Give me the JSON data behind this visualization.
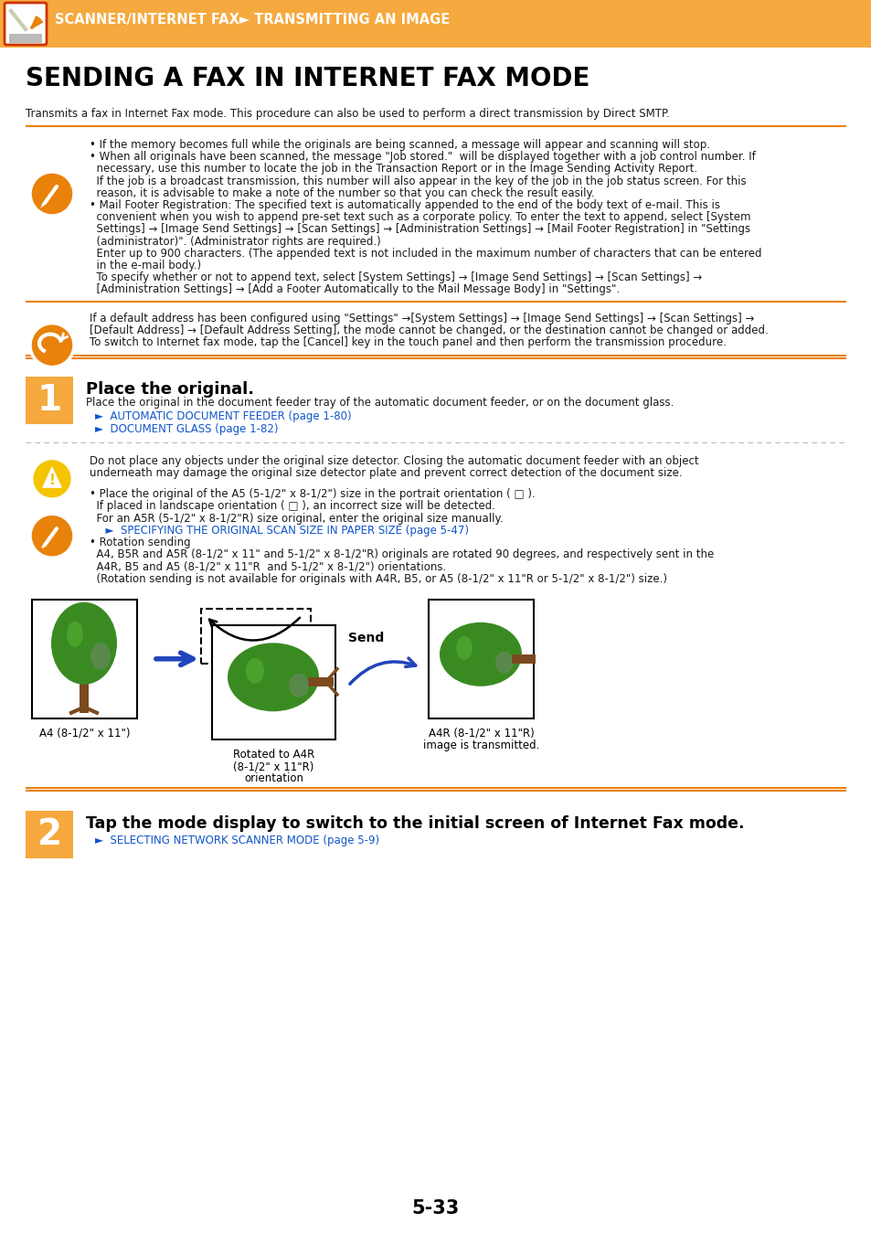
{
  "header_bg": "#F5A93E",
  "header_text": "SCANNER/INTERNET FAX► TRANSMITTING AN IMAGE",
  "page_bg": "#FFFFFF",
  "title": "SENDING A FAX IN INTERNET FAX MODE",
  "subtitle": "Transmits a fax in Internet Fax mode. This procedure can also be used to perform a direct transmission by Direct SMTP.",
  "orange_color": "#E8820A",
  "step_box_color": "#F5A93E",
  "link_color": "#1155CC",
  "note_icon_color": "#E8820A",
  "caution_icon_color": "#F5C400",
  "page_number": "5-33",
  "note1_line1": "• If the memory becomes full while the originals are being scanned, a message will appear and scanning will stop.",
  "note1_line2a": "• When all originals have been scanned, the message \"Job stored.\"  will be displayed together with a job control number. If",
  "note1_line2b": "  necessary, use this number to locate the job in the Transaction Report or in the Image Sending Activity Report.",
  "note1_line2c": "  If the job is a broadcast transmission, this number will also appear in the key of the job in the job status screen. For this",
  "note1_line2d": "  reason, it is advisable to make a note of the number so that you can check the result easily.",
  "note1_line3a": "• Mail Footer Registration: The specified text is automatically appended to the end of the body text of e-mail. This is",
  "note1_line3b": "  convenient when you wish to append pre-set text such as a corporate policy. To enter the text to append, select [System",
  "note1_line3c": "  Settings] → [Image Send Settings] → [Scan Settings] → [Administration Settings] → [Mail Footer Registration] in \"Settings",
  "note1_line3d": "  (administrator)\". (Administrator rights are required.)",
  "note1_line3e": "  Enter up to 900 characters. (The appended text is not included in the maximum number of characters that can be entered",
  "note1_line3f": "  in the e-mail body.)",
  "note1_line3g": "  To specify whether or not to append text, select [System Settings] → [Image Send Settings] → [Scan Settings] →",
  "note1_line3h": "  [Administration Settings] → [Add a Footer Automatically to the Mail Message Body] in \"Settings\".",
  "warn_line1": "If a default address has been configured using \"Settings\" →[System Settings] → [Image Send Settings] → [Scan Settings] →",
  "warn_line2": "[Default Address] → [Default Address Setting], the mode cannot be changed, or the destination cannot be changed or added.",
  "warn_line3": "To switch to Internet fax mode, tap the [Cancel] key in the touch panel and then perform the transmission procedure.",
  "step1_title": "Place the original.",
  "step1_body": "Place the original in the document feeder tray of the automatic document feeder, or on the document glass.",
  "step1_link1": "►  AUTOMATIC DOCUMENT FEEDER (page 1-80)",
  "step1_link2": "►  DOCUMENT GLASS (page 1-82)",
  "caution_line1": "Do not place any objects under the original size detector. Closing the automatic document feeder with an object",
  "caution_line2": "underneath may damage the original size detector plate and prevent correct detection of the document size.",
  "note2_line1a": "• Place the original of the A5 (5-1/2\" x 8-1/2\") size in the portrait orientation ( □ ).",
  "note2_line1b": "  If placed in landscape orientation ( □ ), an incorrect size will be detected.",
  "note2_line1c": "  For an A5R (5-1/2\" x 8-1/2\"R) size original, enter the original size manually.",
  "note2_link1": "  ►  SPECIFYING THE ORIGINAL SCAN SIZE IN PAPER SIZE (page 5-47)",
  "note2_line2a": "• Rotation sending",
  "note2_line2b": "  A4, B5R and A5R (8-1/2\" x 11\" and 5-1/2\" x 8-1/2\"R) originals are rotated 90 degrees, and respectively sent in the",
  "note2_line2c": "  A4R, B5 and A5 (8-1/2\" x 11\"R  and 5-1/2\" x 8-1/2\") orientations.",
  "note2_line2d": "  (Rotation sending is not available for originals with A4R, B5, or A5 (8-1/2\" x 11\"R or 5-1/2\" x 8-1/2\") size.)",
  "diag_a4_label": "A4 (8-1/2\" x 11\")",
  "diag_rot_label1": "Rotated to A4R",
  "diag_rot_label2": "(8-1/2\" x 11\"R)",
  "diag_rot_label3": "orientation",
  "diag_send": "Send",
  "diag_a4r_label1": "A4R (8-1/2\" x 11\"R)",
  "diag_a4r_label2": "image is transmitted.",
  "step2_title": "Tap the mode display to switch to the initial screen of Internet Fax mode.",
  "step2_link1": "►  SELECTING NETWORK SCANNER MODE (page 5-9)"
}
